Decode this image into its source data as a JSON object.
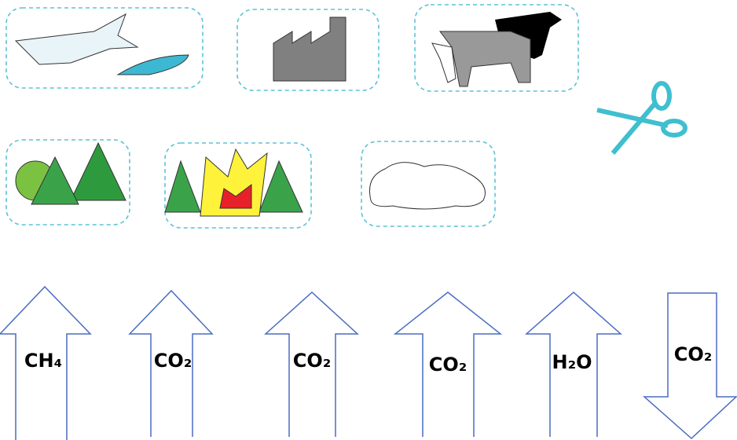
{
  "arrows": [
    {
      "label": "CH₄"
    },
    {
      "label": "CO₂"
    },
    {
      "label": "CO₂"
    },
    {
      "label": "CO₂"
    },
    {
      "label": "H₂O"
    },
    {
      "label": "CO₂"
    }
  ]
}
